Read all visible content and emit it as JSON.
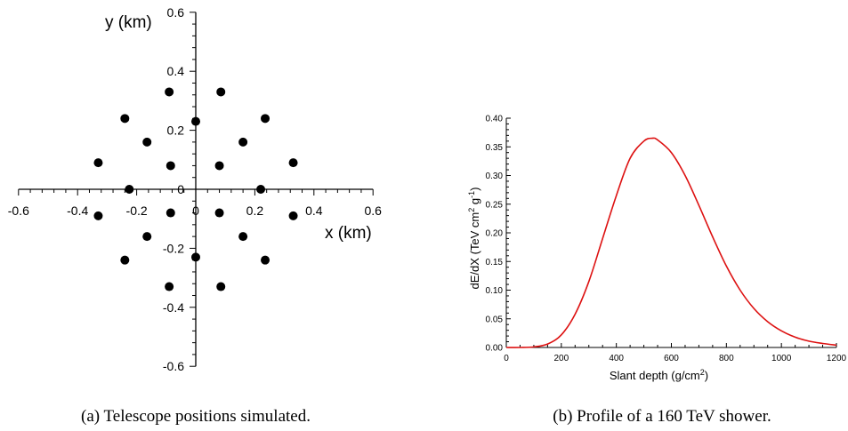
{
  "chart_data": [
    {
      "type": "scatter",
      "xlabel": "x (km)",
      "ylabel": "y (km)",
      "xlim": [
        -0.6,
        0.6
      ],
      "ylim": [
        -0.6,
        0.6
      ],
      "x_ticks": [
        "-0.6",
        "-0.4",
        "-0.2",
        "0",
        "0.2",
        "0.4",
        "0.6"
      ],
      "y_ticks": [
        "0.6",
        "0.4",
        "0.2",
        "0",
        "-0.2",
        "-0.4",
        "-0.6"
      ],
      "minor_tick_step": 0.04,
      "marker_color": "#000000",
      "caption": "(a) Telescope positions simulated.",
      "points": [
        {
          "x": -0.09,
          "y": 0.33
        },
        {
          "x": 0.085,
          "y": 0.33
        },
        {
          "x": -0.24,
          "y": 0.24
        },
        {
          "x": 0.235,
          "y": 0.24
        },
        {
          "x": -0.165,
          "y": 0.16
        },
        {
          "x": 0.16,
          "y": 0.16
        },
        {
          "x": 0.0,
          "y": 0.23
        },
        {
          "x": -0.085,
          "y": 0.08
        },
        {
          "x": 0.08,
          "y": 0.08
        },
        {
          "x": -0.33,
          "y": 0.09
        },
        {
          "x": 0.33,
          "y": 0.09
        },
        {
          "x": -0.225,
          "y": 0.0
        },
        {
          "x": 0.22,
          "y": 0.0
        },
        {
          "x": -0.33,
          "y": -0.09
        },
        {
          "x": 0.33,
          "y": -0.09
        },
        {
          "x": -0.085,
          "y": -0.08
        },
        {
          "x": 0.08,
          "y": -0.08
        },
        {
          "x": -0.165,
          "y": -0.16
        },
        {
          "x": 0.16,
          "y": -0.16
        },
        {
          "x": 0.0,
          "y": -0.23
        },
        {
          "x": -0.24,
          "y": -0.24
        },
        {
          "x": 0.235,
          "y": -0.24
        },
        {
          "x": -0.09,
          "y": -0.33
        },
        {
          "x": 0.085,
          "y": -0.33
        }
      ]
    },
    {
      "type": "line",
      "xlabel_main": "Slant depth (g/cm",
      "xlabel_sup": "2",
      "xlabel_end": ")",
      "ylabel_parts": [
        "dE/dX (TeV cm",
        "2",
        " g",
        "-1",
        ")"
      ],
      "xlim": [
        0,
        1200
      ],
      "ylim": [
        0,
        0.4
      ],
      "x_ticks": [
        "0",
        "200",
        "400",
        "600",
        "800",
        "1000",
        "1200"
      ],
      "y_ticks": [
        "0.00",
        "0.05",
        "0.10",
        "0.15",
        "0.20",
        "0.25",
        "0.30",
        "0.35",
        "0.40"
      ],
      "line_color": "#dd1111",
      "caption": "(b) Profile of a 160 TeV shower.",
      "series": [
        {
          "x": [
            0,
            50,
            100,
            150,
            200,
            250,
            300,
            350,
            400,
            450,
            500,
            530,
            550,
            600,
            650,
            700,
            750,
            800,
            850,
            900,
            950,
            1000,
            1050,
            1100,
            1150,
            1200
          ],
          "y": [
            0.0,
            0.0,
            0.001,
            0.006,
            0.022,
            0.058,
            0.115,
            0.19,
            0.265,
            0.33,
            0.36,
            0.365,
            0.362,
            0.34,
            0.3,
            0.248,
            0.193,
            0.142,
            0.1,
            0.068,
            0.045,
            0.029,
            0.018,
            0.011,
            0.007,
            0.004
          ]
        }
      ]
    }
  ]
}
